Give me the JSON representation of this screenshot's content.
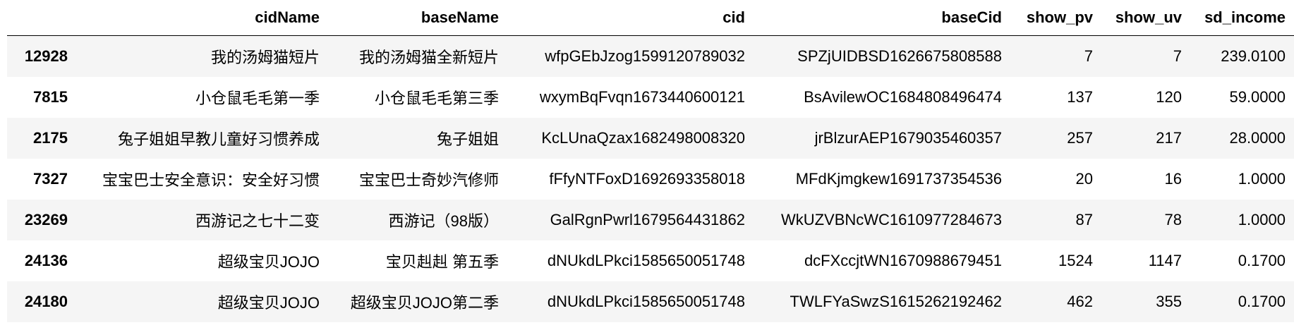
{
  "table": {
    "columns": [
      "",
      "cidName",
      "baseName",
      "cid",
      "baseCid",
      "show_pv",
      "show_uv",
      "sd_income"
    ],
    "rows": [
      [
        "12928",
        "我的汤姆猫短片",
        "我的汤姆猫全新短片",
        "wfpGEbJzog1599120789032",
        "SPZjUIDBSD1626675808588",
        "7",
        "7",
        "239.0100"
      ],
      [
        "7815",
        "小仓鼠毛毛第一季",
        "小仓鼠毛毛第三季",
        "wxymBqFvqn1673440600121",
        "BsAvilewOC1684808496474",
        "137",
        "120",
        "59.0000"
      ],
      [
        "2175",
        "兔子姐姐早教儿童好习惯养成",
        "兔子姐姐",
        "KcLUnaQzax1682498008320",
        "jrBlzurAEP1679035460357",
        "257",
        "217",
        "28.0000"
      ],
      [
        "7327",
        "宝宝巴士安全意识：安全好习惯",
        "宝宝巴士奇妙汽修师",
        "fFfyNTFoxD1692693358018",
        "MFdKjmgkew1691737354536",
        "20",
        "16",
        "1.0000"
      ],
      [
        "23269",
        "西游记之七十二变",
        "西游记（98版）",
        "GalRgnPwrl1679564431862",
        "WkUZVBNcWC1610977284673",
        "87",
        "78",
        "1.0000"
      ],
      [
        "24136",
        "超级宝贝JOJO",
        "宝贝赳赳 第五季",
        "dNUkdLPkci1585650051748",
        "dcFXccjtWN1670988679451",
        "1524",
        "1147",
        "0.1700"
      ],
      [
        "24180",
        "超级宝贝JOJO",
        "超级宝贝JOJO第二季",
        "dNUkdLPkci1585650051748",
        "TWLFYaSwzS1615262192462",
        "462",
        "355",
        "0.1700"
      ]
    ]
  }
}
